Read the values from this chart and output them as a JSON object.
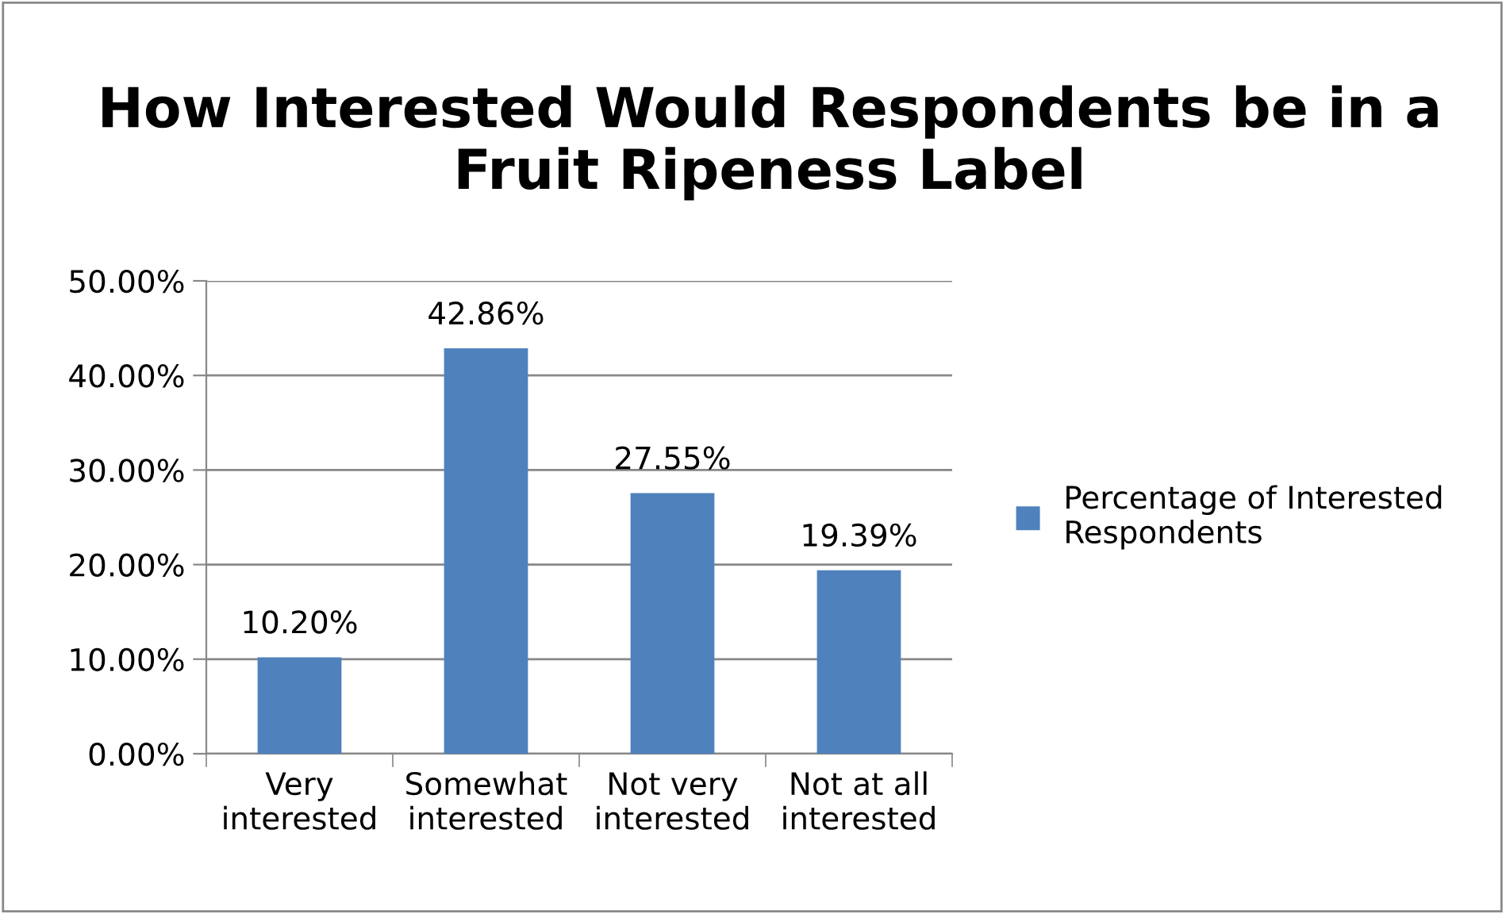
{
  "chart_data": {
    "type": "bar",
    "title": "How Interested Would Respondents be in a Fruit Ripeness Label",
    "categories": [
      "Very interested",
      "Somewhat interested",
      "Not very interested",
      "Not at all interested"
    ],
    "series": [
      {
        "name": "Percentage of Interested Respondents",
        "color": "#4f81bd",
        "values": [
          10.2,
          42.86,
          27.55,
          19.39
        ],
        "value_labels": [
          "10.20%",
          "42.86%",
          "27.55%",
          "19.39%"
        ]
      }
    ],
    "ylim": [
      0,
      50
    ],
    "yticks": [
      {
        "value": 0,
        "label": "0.00%"
      },
      {
        "value": 10,
        "label": "10.00%"
      },
      {
        "value": 20,
        "label": "20.00%"
      },
      {
        "value": 30,
        "label": "30.00%"
      },
      {
        "value": 40,
        "label": "40.00%"
      },
      {
        "value": 50,
        "label": "50.00%"
      }
    ],
    "grid": "y",
    "legend": "right"
  }
}
